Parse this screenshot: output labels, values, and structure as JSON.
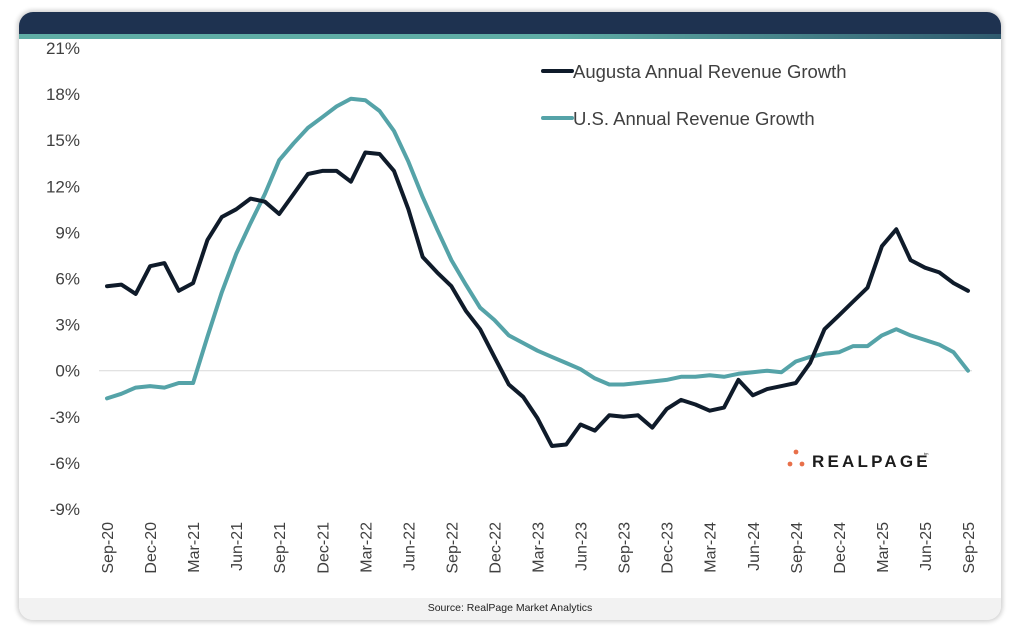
{
  "window": {
    "title_bar_color": "#1e3250",
    "accent_stripe_color": "#5fada5"
  },
  "footer": {
    "source": "Source: RealPage Market Analytics"
  },
  "logo": {
    "text": "REALPAGE",
    "mark": "tm",
    "dot_color": "#e8704a"
  },
  "chart_data": {
    "type": "line",
    "title": "",
    "xlabel": "",
    "ylabel": "",
    "ylim": [
      -9,
      21
    ],
    "yticks": [
      21,
      18,
      15,
      12,
      9,
      6,
      3,
      0,
      -3,
      -6,
      -9
    ],
    "ytick_labels": [
      "21%",
      "18%",
      "15%",
      "12%",
      "9%",
      "6%",
      "3%",
      "0%",
      "-3%",
      "-6%",
      "-9%"
    ],
    "xtick_labels": [
      "Sep-20",
      "Dec-20",
      "Mar-21",
      "Jun-21",
      "Sep-21",
      "Dec-21",
      "Mar-22",
      "Jun-22",
      "Sep-22",
      "Dec-22",
      "Mar-23",
      "Jun-23",
      "Sep-23",
      "Dec-23",
      "Mar-24",
      "Jun-24",
      "Sep-24",
      "Dec-24",
      "Mar-25",
      "Jun-25",
      "Sep-25"
    ],
    "x_start": "Sep-20",
    "x_frequency": "monthly",
    "grid": false,
    "zero_line": true,
    "legend_position": "top-right",
    "series": [
      {
        "name": "Augusta Annual Revenue Growth",
        "color": "#0f1b2a",
        "values": [
          5.5,
          5.6,
          5.0,
          6.8,
          7.0,
          5.2,
          5.7,
          8.5,
          10.0,
          10.5,
          11.2,
          11.0,
          10.2,
          11.5,
          12.8,
          13.0,
          13.0,
          12.3,
          14.2,
          14.1,
          13.0,
          10.5,
          7.4,
          6.4,
          5.5,
          3.9,
          2.7,
          0.9,
          -0.9,
          -1.7,
          -3.1,
          -4.9,
          -4.8,
          -3.5,
          -3.9,
          -2.9,
          -3.0,
          -2.9,
          -3.7,
          -2.5,
          -1.9,
          -2.2,
          -2.6,
          -2.4,
          -0.6,
          -1.6,
          -1.2,
          -1.0,
          -0.8,
          0.5,
          2.7,
          3.6,
          4.5,
          5.4,
          8.1,
          9.2,
          7.2,
          6.7,
          6.4,
          5.7,
          5.2
        ]
      },
      {
        "name": "U.S. Annual Revenue Growth",
        "color": "#55a3a8",
        "values": [
          -1.8,
          -1.5,
          -1.1,
          -1.0,
          -1.1,
          -0.8,
          -0.8,
          2.2,
          5.1,
          7.6,
          9.6,
          11.5,
          13.7,
          14.8,
          15.8,
          16.5,
          17.2,
          17.7,
          17.6,
          16.9,
          15.6,
          13.6,
          11.3,
          9.2,
          7.2,
          5.6,
          4.1,
          3.3,
          2.3,
          1.8,
          1.3,
          0.9,
          0.5,
          0.1,
          -0.5,
          -0.9,
          -0.9,
          -0.8,
          -0.7,
          -0.6,
          -0.4,
          -0.4,
          -0.3,
          -0.4,
          -0.2,
          -0.1,
          0.0,
          -0.1,
          0.6,
          0.9,
          1.1,
          1.2,
          1.6,
          1.6,
          2.3,
          2.7,
          2.3,
          2.0,
          1.7,
          1.2,
          0.0
        ]
      }
    ]
  }
}
